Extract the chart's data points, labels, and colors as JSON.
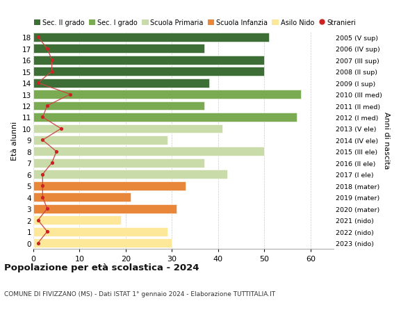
{
  "ages": [
    0,
    1,
    2,
    3,
    4,
    5,
    6,
    7,
    8,
    9,
    10,
    11,
    12,
    13,
    14,
    15,
    16,
    17,
    18
  ],
  "bar_values": [
    30,
    29,
    19,
    31,
    21,
    33,
    42,
    37,
    50,
    29,
    41,
    57,
    37,
    58,
    38,
    50,
    50,
    37,
    51
  ],
  "stranieri": [
    1,
    3,
    1,
    3,
    2,
    2,
    2,
    4,
    5,
    2,
    6,
    2,
    3,
    8,
    1,
    4,
    4,
    3,
    1
  ],
  "right_labels": [
    "2023 (nido)",
    "2022 (nido)",
    "2021 (nido)",
    "2020 (mater)",
    "2019 (mater)",
    "2018 (mater)",
    "2017 (I ele)",
    "2016 (II ele)",
    "2015 (III ele)",
    "2014 (IV ele)",
    "2013 (V ele)",
    "2012 (I med)",
    "2011 (II med)",
    "2010 (III med)",
    "2009 (I sup)",
    "2008 (II sup)",
    "2007 (III sup)",
    "2006 (IV sup)",
    "2005 (V sup)"
  ],
  "bar_colors": [
    "#fde89a",
    "#fde89a",
    "#fde89a",
    "#e8873a",
    "#e8873a",
    "#e8873a",
    "#c8dba8",
    "#c8dba8",
    "#c8dba8",
    "#c8dba8",
    "#c8dba8",
    "#7aab52",
    "#7aab52",
    "#7aab52",
    "#3d6e35",
    "#3d6e35",
    "#3d6e35",
    "#3d6e35",
    "#3d6e35"
  ],
  "legend_labels": [
    "Sec. II grado",
    "Sec. I grado",
    "Scuola Primaria",
    "Scuola Infanzia",
    "Asilo Nido",
    "Stranieri"
  ],
  "legend_colors": [
    "#3d6e35",
    "#7aab52",
    "#c8dba8",
    "#e8873a",
    "#fde89a",
    "#cc2222"
  ],
  "title": "Popolazione per età scolastica - 2024",
  "subtitle": "COMUNE DI FIVIZZANO (MS) - Dati ISTAT 1° gennaio 2024 - Elaborazione TUTTITALIA.IT",
  "ylabel": "Età alunni",
  "right_ylabel": "Anni di nascita",
  "xlim": [
    0,
    65
  ],
  "xticks": [
    0,
    10,
    20,
    30,
    40,
    50,
    60
  ],
  "bar_height": 0.78,
  "stranieri_color": "#cc2222",
  "stranieri_line_color": "#cc4444",
  "bg_color": "#ffffff"
}
